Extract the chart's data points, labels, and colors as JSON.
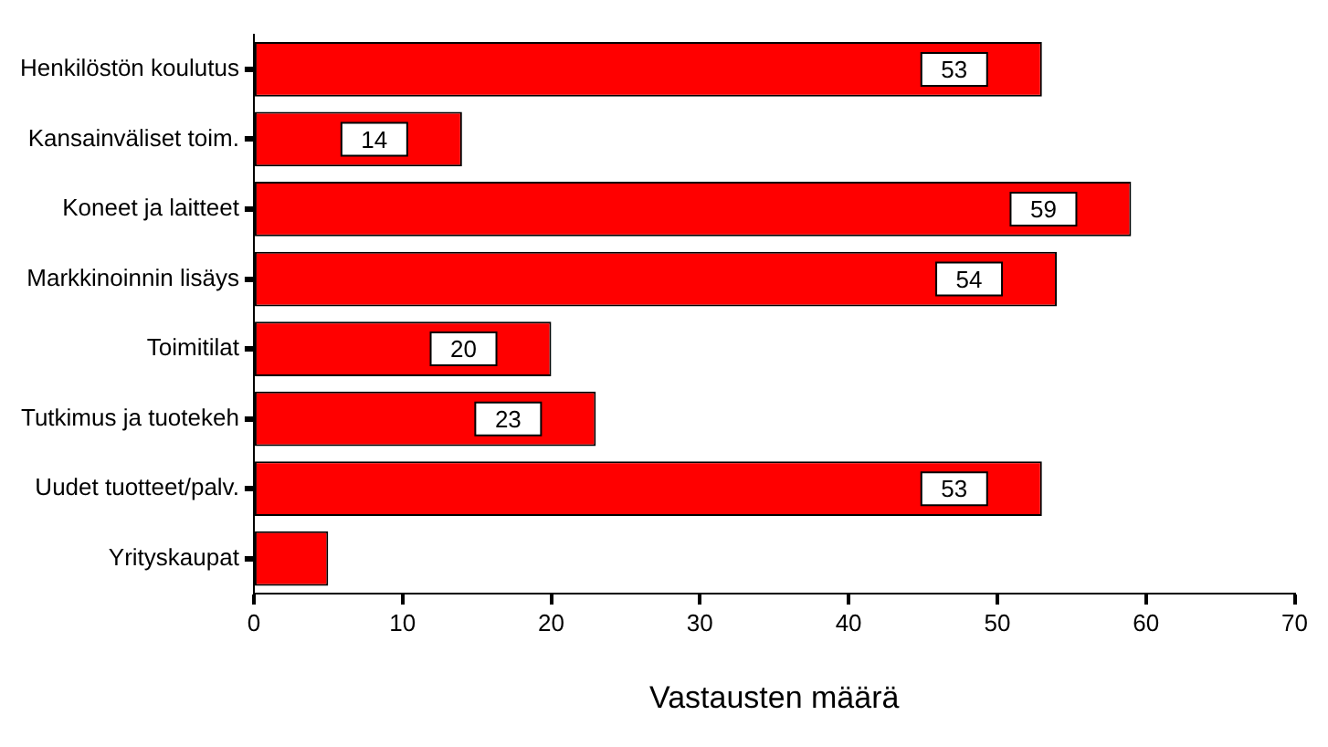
{
  "chart_data": {
    "type": "bar",
    "orientation": "horizontal",
    "xlabel": "Vastausten määrä",
    "categories": [
      "Henkilöstön koulutus",
      "Kansainväliset toim.",
      "Koneet ja laitteet",
      "Markkinoinnin lisäys",
      "Toimitilat",
      "Tutkimus ja tuotekeh",
      "Uudet tuotteet/palv.",
      "Yrityskaupat"
    ],
    "values": [
      53,
      14,
      59,
      54,
      20,
      23,
      53,
      5
    ],
    "value_labels": [
      "53",
      "14",
      "59",
      "54",
      "20",
      "23",
      "53",
      null
    ],
    "color": "#ff0000",
    "xlim": [
      0,
      70
    ],
    "xticks": [
      0,
      10,
      20,
      30,
      40,
      50,
      60,
      70
    ],
    "grid": false
  }
}
